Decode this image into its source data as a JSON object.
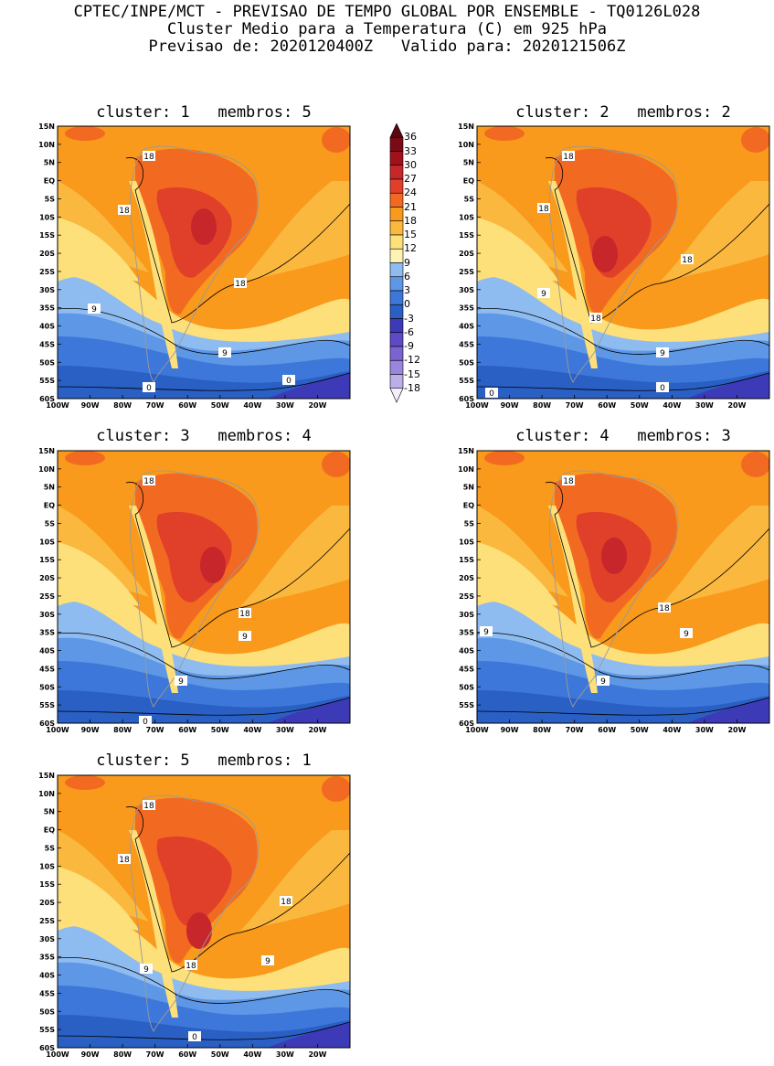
{
  "header": {
    "line1": "CPTEC/INPE/MCT - PREVISAO DE TEMPO GLOBAL POR ENSEMBLE - TQ0126L028",
    "line2": "Cluster Medio para a Temperatura (C) em 925 hPa",
    "line3": "Previsao de: 2020120400Z   Valido para: 2020121506Z"
  },
  "colors": {
    "36": "#7a0a16",
    "33": "#a1111c",
    "30": "#c7262a",
    "27": "#e0402a",
    "24": "#f26a22",
    "21": "#f99a1c",
    "18": "#fbb83f",
    "15": "#fde07a",
    "12": "#fdf3b5",
    "9": "#8fbcf0",
    "6": "#5d97e5",
    "3": "#3d77d9",
    "0": "#2a5fc4",
    "-3": "#3d3ab8",
    "-6": "#5e4ac6",
    "-9": "#7b63d0",
    "-12": "#9a86dc",
    "-15": "#bcaee8",
    "-18": "#ddd5f4"
  },
  "panels": [
    {
      "title": "cluster: 1   membros: 5",
      "contour_labels": [
        "18",
        "18",
        "18",
        "9",
        "9",
        "0",
        "0"
      ]
    },
    {
      "title": "cluster: 2   membros: 2",
      "contour_labels": [
        "18",
        "18",
        "18",
        "18",
        "9",
        "9",
        "0",
        "0"
      ]
    },
    {
      "title": "cluster: 3   membros: 4",
      "contour_labels": [
        "18",
        "18",
        "9",
        "9",
        "0"
      ]
    },
    {
      "title": "cluster: 4   membros: 3",
      "contour_labels": [
        "18",
        "18",
        "9",
        "9",
        "9"
      ]
    },
    {
      "title": "cluster: 5   membros: 1",
      "contour_labels": [
        "18",
        "18",
        "18",
        "18",
        "9",
        "9",
        "0"
      ]
    }
  ],
  "axes": {
    "lat_labels": [
      "15N",
      "10N",
      "5N",
      "EQ",
      "5S",
      "10S",
      "15S",
      "20S",
      "25S",
      "30S",
      "35S",
      "40S",
      "45S",
      "50S",
      "55S",
      "60S"
    ],
    "lon_labels": [
      "100W",
      "90W",
      "80W",
      "70W",
      "60W",
      "50W",
      "40W",
      "30W",
      "20W"
    ]
  },
  "colorbar": {
    "levels": [
      "36",
      "33",
      "30",
      "27",
      "24",
      "21",
      "18",
      "15",
      "12",
      "9",
      "6",
      "3",
      "0",
      "-3",
      "-6",
      "-9",
      "-12",
      "-15",
      "-18"
    ]
  }
}
